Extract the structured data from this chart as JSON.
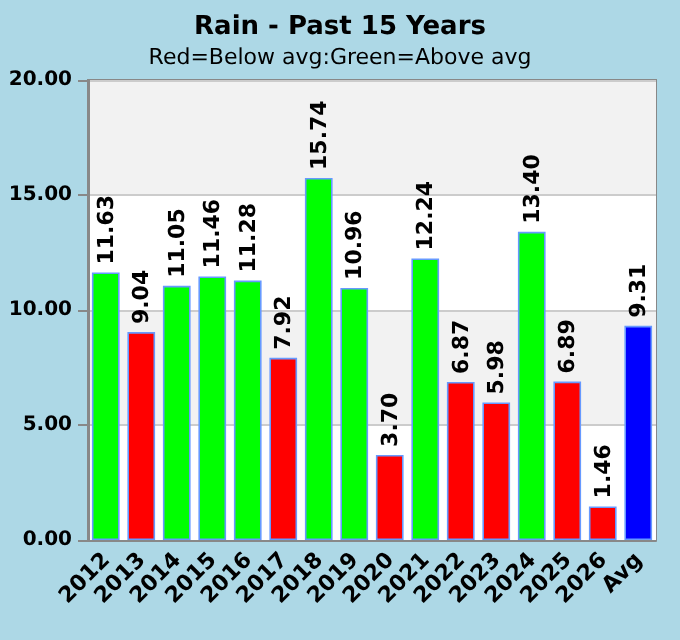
{
  "chart_data": {
    "type": "bar",
    "title": "Rain - Past 15 Years",
    "subtitle": "Red=Below avg:Green=Above avg",
    "categories": [
      "2012",
      "2013",
      "2014",
      "2015",
      "2016",
      "2017",
      "2018",
      "2019",
      "2020",
      "2021",
      "2022",
      "2023",
      "2024",
      "2025",
      "2026",
      "Avg"
    ],
    "values": [
      11.63,
      9.04,
      11.05,
      11.46,
      11.28,
      7.92,
      15.74,
      10.96,
      3.7,
      12.24,
      6.87,
      5.98,
      13.4,
      6.89,
      1.46,
      9.31
    ],
    "colors": [
      "#00ff00",
      "#ff0000",
      "#00ff00",
      "#00ff00",
      "#00ff00",
      "#ff0000",
      "#00ff00",
      "#00ff00",
      "#ff0000",
      "#00ff00",
      "#ff0000",
      "#ff0000",
      "#00ff00",
      "#ff0000",
      "#ff0000",
      "#0000ff"
    ],
    "value_labels": [
      "11.63",
      "9.04",
      "11.05",
      "11.46",
      "11.28",
      "7.92",
      "15.74",
      "10.96",
      "3.70",
      "12.24",
      "6.87",
      "5.98",
      "13.40",
      "6.89",
      "1.46",
      "9.31"
    ],
    "ylim": [
      0,
      20
    ],
    "yticks": [
      {
        "value": 0,
        "label": "0.00"
      },
      {
        "value": 5,
        "label": "5.00"
      },
      {
        "value": 10,
        "label": "10.00"
      },
      {
        "value": 15,
        "label": "15.00"
      },
      {
        "value": 20,
        "label": "20.00"
      }
    ],
    "grid": "y"
  }
}
